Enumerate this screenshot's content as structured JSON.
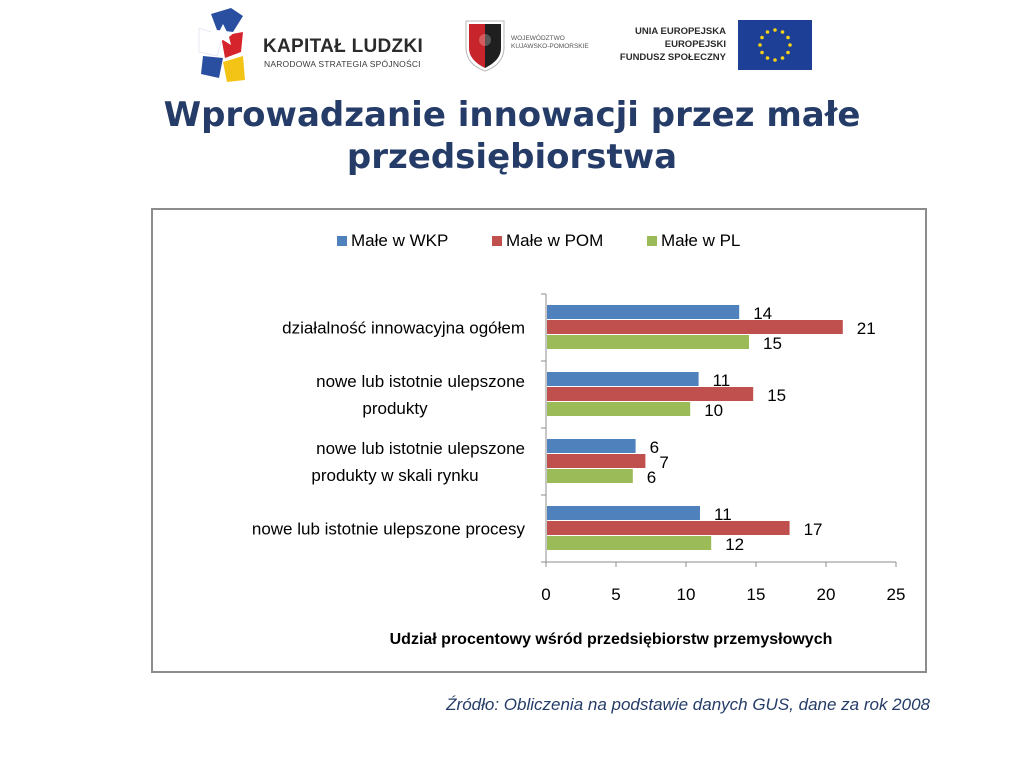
{
  "header": {
    "logo_kapital": {
      "title": "KAPITAŁ LUDZKI",
      "subtitle": "NARODOWA STRATEGIA SPÓJNOŚCI"
    },
    "logo_region": {
      "line1": "WOJEWÓDZTWO",
      "line2": "KUJAWSKO-POMORSKIE"
    },
    "logo_eu": {
      "line1": "UNIA EUROPEJSKA",
      "line2": "EUROPEJSKI",
      "line3": "FUNDUSZ SPOŁECZNY"
    }
  },
  "slide": {
    "title_line1": "Wprowadzanie innowacji przez małe",
    "title_line2": "przedsiębiorstwa",
    "source": "Źródło: Obliczenia na podstawie danych GUS, dane za rok 2008"
  },
  "chart_data": {
    "type": "bar",
    "orientation": "horizontal",
    "categories": [
      "działalność innowacyjna  ogółem",
      "nowe lub istotnie  ulepszone produkty",
      "nowe lub istotnie  ulepszone produkty w skali rynku",
      "nowe lub istotnie  ulepszone procesy"
    ],
    "series": [
      {
        "name": "Małe w WKP",
        "color": "#4f81bd",
        "values": [
          13.8,
          10.9,
          6.4,
          11.0
        ],
        "labels": [
          "14",
          "11",
          "6",
          "11"
        ]
      },
      {
        "name": "Małe w POM",
        "color": "#c0504d",
        "values": [
          21.2,
          14.8,
          7.1,
          17.4
        ],
        "labels": [
          "21",
          "15",
          "7",
          "17"
        ]
      },
      {
        "name": "Małe w PL",
        "color": "#9bbb59",
        "values": [
          14.5,
          10.3,
          6.2,
          11.8
        ],
        "labels": [
          "15",
          "10",
          "6",
          "12"
        ]
      }
    ],
    "xlabel": "Udział procentowy wśród przedsiębiorstw  przemysłowych",
    "xlim": [
      0,
      25
    ],
    "xticks": [
      0,
      5,
      10,
      15,
      20,
      25
    ],
    "legend_position": "top",
    "grid": false
  }
}
